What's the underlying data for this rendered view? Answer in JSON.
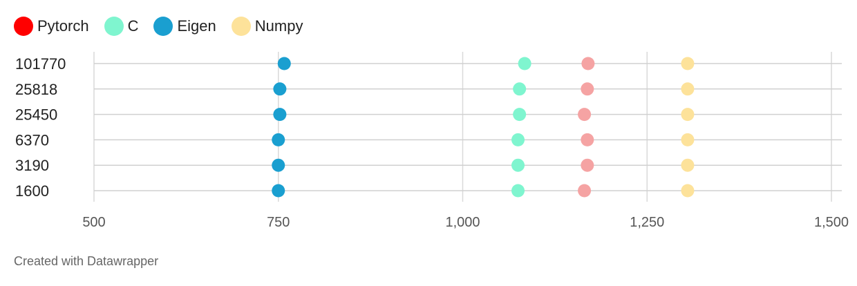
{
  "chart_data": {
    "type": "scatter",
    "categories": [
      "101770",
      "25818",
      "25450",
      "6370",
      "3190",
      "1600"
    ],
    "series": [
      {
        "name": "Pytorch",
        "color": "#ff0000",
        "plot_color": "#f5a3a3",
        "values": [
          1170,
          1169,
          1165,
          1169,
          1169,
          1165
        ]
      },
      {
        "name": "C",
        "color": "#7ff5cf",
        "plot_color": "#7ff5cf",
        "values": [
          1084,
          1077,
          1077,
          1075,
          1075,
          1075
        ]
      },
      {
        "name": "Eigen",
        "color": "#1a9fd0",
        "plot_color": "#1a9fd0",
        "values": [
          758,
          752,
          752,
          750,
          750,
          750
        ]
      },
      {
        "name": "Numpy",
        "color": "#fde29a",
        "plot_color": "#fde29a",
        "values": [
          1305,
          1305,
          1305,
          1305,
          1305,
          1305
        ]
      }
    ],
    "xlim": [
      500,
      1500
    ],
    "x_ticks": [
      500,
      750,
      1000,
      1250,
      1500
    ],
    "x_tick_labels": [
      "500",
      "750",
      "1,000",
      "1,250",
      "1,500"
    ],
    "grid": true,
    "legend": "top-left"
  },
  "footer": {
    "text": "Created with Datawrapper"
  }
}
